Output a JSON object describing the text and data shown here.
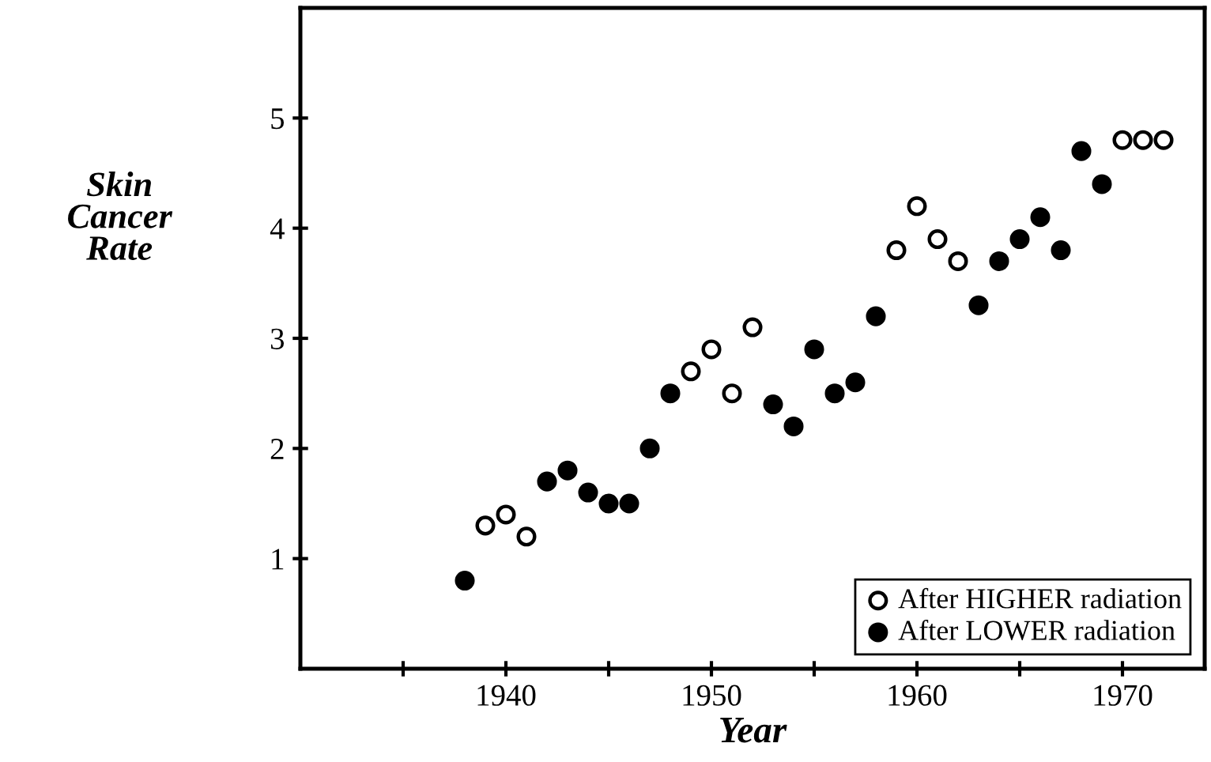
{
  "chart_data": {
    "type": "scatter",
    "xlabel": "Year",
    "ylabel": "Skin\nCancer\nRate",
    "series": [
      {
        "name": "After HIGHER radiation",
        "color": "#000000",
        "x": [
          1939,
          1940,
          1941,
          1949,
          1950,
          1951,
          1952,
          1959,
          1960,
          1961,
          1962,
          1970,
          1971,
          1972
        ],
        "values": [
          1.3,
          1.4,
          1.2,
          2.7,
          2.9,
          2.5,
          3.1,
          3.8,
          4.2,
          3.9,
          3.7,
          4.8,
          4.8,
          4.8
        ]
      },
      {
        "name": "After LOWER radiation",
        "color": "#000000",
        "x": [
          1938,
          1942,
          1943,
          1944,
          1945,
          1946,
          1947,
          1948,
          1953,
          1954,
          1955,
          1956,
          1957,
          1958,
          1963,
          1964,
          1965,
          1966,
          1967,
          1968,
          1969
        ],
        "values": [
          0.8,
          1.7,
          1.8,
          1.6,
          1.5,
          1.5,
          2.0,
          2.5,
          2.4,
          2.2,
          2.9,
          2.5,
          2.6,
          3.2,
          3.3,
          3.7,
          3.9,
          4.1,
          3.8,
          4.7,
          4.4
        ]
      }
    ],
    "xlim": [
      1930,
      1974
    ],
    "xticks": [
      {
        "value": 1935,
        "label": null
      },
      1940,
      {
        "value": 1945,
        "label": null
      },
      1950,
      {
        "value": 1955,
        "label": null
      },
      1960,
      {
        "value": 1965,
        "label": null
      },
      1970
    ],
    "ylim": [
      0,
      6
    ],
    "yticks": [
      1,
      2,
      3,
      4,
      5
    ],
    "marker": "circle",
    "grid": false,
    "legend": "bottom right"
  }
}
